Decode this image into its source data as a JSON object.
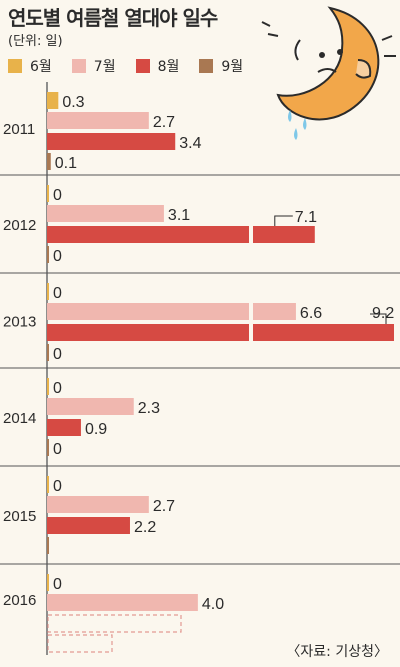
{
  "header": {
    "title": "연도별 여름철 열대야 일수",
    "unit": "(단위: 일)"
  },
  "legend": [
    {
      "label": "6월",
      "color": "#e8b24a"
    },
    {
      "label": "7월",
      "color": "#f0b7af"
    },
    {
      "label": "8월",
      "color": "#d64a43"
    },
    {
      "label": "9월",
      "color": "#a97852"
    }
  ],
  "source": "〈자료: 기상청〉",
  "chart_data": {
    "type": "bar",
    "orientation": "horizontal",
    "categories": [
      "2011",
      "2012",
      "2013",
      "2014",
      "2015",
      "2016"
    ],
    "series": [
      {
        "name": "6월",
        "values": [
          0.3,
          0,
          0,
          0,
          0,
          0
        ]
      },
      {
        "name": "7월",
        "values": [
          2.7,
          3.1,
          6.6,
          2.3,
          2.7,
          4.0
        ]
      },
      {
        "name": "8월",
        "values": [
          3.4,
          7.1,
          9.2,
          0.9,
          2.2,
          null
        ]
      },
      {
        "name": "9월",
        "values": [
          0.1,
          0,
          0,
          0,
          0,
          null
        ]
      }
    ],
    "data_labels": [
      [
        "0.3",
        "2.7",
        "3.4",
        "0.1"
      ],
      [
        "0",
        "3.1",
        "7.1",
        "0"
      ],
      [
        "0",
        "6.6",
        "9.2",
        "0"
      ],
      [
        "0",
        "2.3",
        "0.9",
        "0"
      ],
      [
        "0",
        "2.7",
        "2.2",
        ""
      ],
      [
        "0",
        "4.0",
        "",
        ""
      ]
    ],
    "title": "연도별 여름철 열대야 일수",
    "xlabel": "",
    "ylabel": "",
    "xlim": [
      0,
      9.2
    ],
    "grid": false,
    "legend_position": "top-left"
  }
}
